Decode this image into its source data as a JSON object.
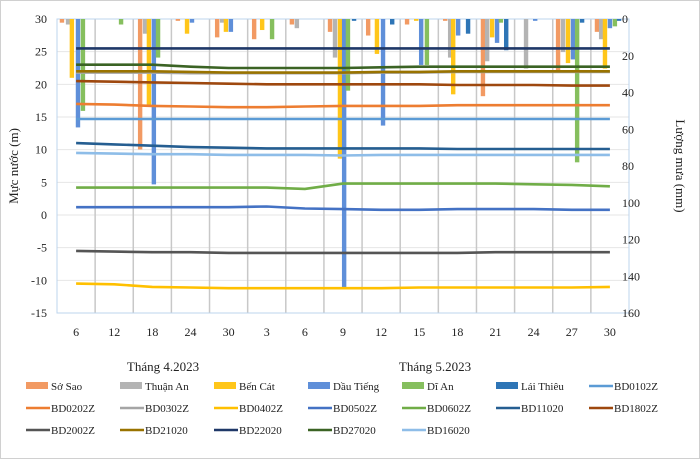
{
  "chart_data": {
    "type": "bar+line",
    "ylabel": "Mực nước (m)",
    "y2label": "Lượng mưa (mm)",
    "ylim": [
      -15,
      30
    ],
    "y_ticks": [
      "30",
      "25",
      "20",
      "15",
      "10",
      "5",
      "0",
      "-5",
      "-10",
      "-15"
    ],
    "y2lim": [
      0,
      160
    ],
    "y2_inverted": true,
    "y2_ticks": [
      "0",
      "20",
      "40",
      "60",
      "80",
      "100",
      "120",
      "140",
      "160"
    ],
    "categories": [
      "6",
      "12",
      "18",
      "24",
      "30",
      "3",
      "6",
      "9",
      "12",
      "15",
      "18",
      "21",
      "24",
      "27",
      "30"
    ],
    "month_labels": [
      "Tháng 4.2023",
      "Tháng 5.2023"
    ],
    "grid": true,
    "legend_placement": "bottom",
    "rain_stations": [
      {
        "name": "Sở Sao",
        "color": "#f29a63"
      },
      {
        "name": "Thuận An",
        "color": "#b4b4b4"
      },
      {
        "name": "Bến Cát",
        "color": "#ffc61a"
      },
      {
        "name": "Dầu Tiếng",
        "color": "#5f8fd9"
      },
      {
        "name": "Dĩ An",
        "color": "#86bf5e"
      },
      {
        "name": "Lái Thiêu",
        "color": "#2e75b6"
      }
    ],
    "rain_bars": [
      {
        "station": 0,
        "x": 0.13,
        "mm": 2
      },
      {
        "station": 1,
        "x": 0.29,
        "mm": 3
      },
      {
        "station": 2,
        "x": 0.39,
        "mm": 32
      },
      {
        "station": 3,
        "x": 0.55,
        "mm": 59
      },
      {
        "station": 4,
        "x": 0.68,
        "mm": 50
      },
      {
        "station": 4,
        "x": 1.68,
        "mm": 3
      },
      {
        "station": 0,
        "x": 2.18,
        "mm": 71
      },
      {
        "station": 1,
        "x": 2.31,
        "mm": 8
      },
      {
        "station": 2,
        "x": 2.41,
        "mm": 47
      },
      {
        "station": 3,
        "x": 2.54,
        "mm": 90
      },
      {
        "station": 4,
        "x": 2.65,
        "mm": 21
      },
      {
        "station": 0,
        "x": 3.17,
        "mm": 1
      },
      {
        "station": 2,
        "x": 3.41,
        "mm": 8
      },
      {
        "station": 3,
        "x": 3.54,
        "mm": 2
      },
      {
        "station": 0,
        "x": 4.2,
        "mm": 10
      },
      {
        "station": 1,
        "x": 4.33,
        "mm": 2
      },
      {
        "station": 2,
        "x": 4.43,
        "mm": 7
      },
      {
        "station": 3,
        "x": 4.56,
        "mm": 7
      },
      {
        "station": 0,
        "x": 5.17,
        "mm": 11
      },
      {
        "station": 2,
        "x": 5.38,
        "mm": 6
      },
      {
        "station": 4,
        "x": 5.64,
        "mm": 11
      },
      {
        "station": 0,
        "x": 6.16,
        "mm": 3
      },
      {
        "station": 1,
        "x": 6.29,
        "mm": 5
      },
      {
        "station": 0,
        "x": 7.16,
        "mm": 7
      },
      {
        "station": 1,
        "x": 7.29,
        "mm": 21
      },
      {
        "station": 2,
        "x": 7.42,
        "mm": 76
      },
      {
        "station": 3,
        "x": 7.53,
        "mm": 147
      },
      {
        "station": 4,
        "x": 7.63,
        "mm": 39
      },
      {
        "station": 5,
        "x": 7.79,
        "mm": 1
      },
      {
        "station": 0,
        "x": 8.16,
        "mm": 9
      },
      {
        "station": 2,
        "x": 8.39,
        "mm": 19
      },
      {
        "station": 3,
        "x": 8.55,
        "mm": 58
      },
      {
        "station": 5,
        "x": 8.79,
        "mm": 3
      },
      {
        "station": 0,
        "x": 9.18,
        "mm": 3
      },
      {
        "station": 2,
        "x": 9.42,
        "mm": 1
      },
      {
        "station": 3,
        "x": 9.55,
        "mm": 25
      },
      {
        "station": 4,
        "x": 9.7,
        "mm": 25
      },
      {
        "station": 0,
        "x": 10.18,
        "mm": 1
      },
      {
        "station": 1,
        "x": 10.31,
        "mm": 21
      },
      {
        "station": 2,
        "x": 10.39,
        "mm": 41
      },
      {
        "station": 3,
        "x": 10.52,
        "mm": 9
      },
      {
        "station": 5,
        "x": 10.78,
        "mm": 8
      },
      {
        "station": 0,
        "x": 11.17,
        "mm": 42
      },
      {
        "station": 1,
        "x": 11.28,
        "mm": 23
      },
      {
        "station": 2,
        "x": 11.41,
        "mm": 10
      },
      {
        "station": 3,
        "x": 11.54,
        "mm": 13
      },
      {
        "station": 4,
        "x": 11.64,
        "mm": 2
      },
      {
        "station": 5,
        "x": 11.78,
        "mm": 17
      },
      {
        "station": 1,
        "x": 12.3,
        "mm": 27
      },
      {
        "station": 3,
        "x": 12.54,
        "mm": 1
      },
      {
        "station": 0,
        "x": 13.14,
        "mm": 29
      },
      {
        "station": 1,
        "x": 13.27,
        "mm": 18
      },
      {
        "station": 2,
        "x": 13.4,
        "mm": 24
      },
      {
        "station": 3,
        "x": 13.53,
        "mm": 22
      },
      {
        "station": 4,
        "x": 13.64,
        "mm": 78
      },
      {
        "station": 5,
        "x": 13.77,
        "mm": 2
      },
      {
        "station": 0,
        "x": 14.16,
        "mm": 7
      },
      {
        "station": 1,
        "x": 14.27,
        "mm": 11
      },
      {
        "station": 2,
        "x": 14.37,
        "mm": 27
      },
      {
        "station": 3,
        "x": 14.5,
        "mm": 5
      },
      {
        "station": 4,
        "x": 14.63,
        "mm": 4
      },
      {
        "station": 5,
        "x": 14.74,
        "mm": 1
      }
    ],
    "wells": [
      {
        "name": "BD0102Z",
        "color": "#5b9bd5",
        "values": [
          14.7,
          14.7,
          14.7,
          14.7,
          14.7,
          14.7,
          14.7,
          14.7,
          14.7,
          14.7,
          14.7,
          14.7,
          14.7,
          14.7,
          14.7
        ]
      },
      {
        "name": "BD0202Z",
        "color": "#ed7d31",
        "values": [
          17,
          16.9,
          16.7,
          16.6,
          16.5,
          16.5,
          16.6,
          16.7,
          16.7,
          16.7,
          16.8,
          16.8,
          16.8,
          16.8,
          16.8
        ]
      },
      {
        "name": "BD0302Z",
        "color": "#a5a5a5",
        "values": [
          21.8,
          21.8,
          21.8,
          21.7,
          21.7,
          21.7,
          21.7,
          21.7,
          21.8,
          21.8,
          21.9,
          21.9,
          21.9,
          21.9,
          21.9
        ]
      },
      {
        "name": "BD0402Z",
        "color": "#ffc000",
        "values": [
          -10.5,
          -10.6,
          -11,
          -11.1,
          -11.2,
          -11.2,
          -11.2,
          -11.2,
          -11.2,
          -11.1,
          -11.1,
          -11.1,
          -11.1,
          -11.1,
          -11
        ]
      },
      {
        "name": "BD0502Z",
        "color": "#4472c4",
        "values": [
          1.2,
          1.2,
          1.2,
          1.2,
          1.2,
          1.3,
          1.0,
          0.9,
          0.8,
          0.8,
          0.9,
          0.9,
          0.9,
          0.8,
          0.8
        ]
      },
      {
        "name": "BD0602Z",
        "color": "#70ad47",
        "values": [
          4.2,
          4.2,
          4.2,
          4.2,
          4.2,
          4.2,
          4.0,
          4.8,
          4.8,
          4.8,
          4.8,
          4.8,
          4.7,
          4.6,
          4.4
        ]
      },
      {
        "name": "BD11020",
        "color": "#255e91",
        "values": [
          11,
          10.8,
          10.6,
          10.4,
          10.3,
          10.2,
          10.2,
          10.2,
          10.2,
          10.2,
          10.1,
          10.1,
          10.1,
          10.1,
          10.1
        ]
      },
      {
        "name": "BD1802Z",
        "color": "#9e480e",
        "values": [
          20.5,
          20.4,
          20.3,
          20.2,
          20.1,
          20,
          20,
          20,
          20,
          20,
          19.9,
          19.9,
          19.9,
          19.8,
          19.8
        ]
      },
      {
        "name": "BD2002Z",
        "color": "#555555",
        "values": [
          -5.5,
          -5.6,
          -5.7,
          -5.7,
          -5.8,
          -5.8,
          -5.8,
          -5.8,
          -5.8,
          -5.8,
          -5.8,
          -5.7,
          -5.7,
          -5.7,
          -5.7
        ]
      },
      {
        "name": "BD21020",
        "color": "#997300",
        "values": [
          22,
          22,
          22,
          21.9,
          21.8,
          21.8,
          21.8,
          21.8,
          21.9,
          21.9,
          22,
          22,
          22,
          22,
          22
        ]
      },
      {
        "name": "BD22020",
        "color": "#1f3868",
        "values": [
          25.5,
          25.5,
          25.5,
          25.5,
          25.5,
          25.5,
          25.5,
          25.5,
          25.5,
          25.5,
          25.5,
          25.5,
          25.5,
          25.5,
          25.5
        ]
      },
      {
        "name": "BD27020",
        "color": "#3b6324",
        "values": [
          23,
          23,
          23,
          22.7,
          22.5,
          22.5,
          22.5,
          22.5,
          22.6,
          22.7,
          22.7,
          22.7,
          22.7,
          22.7,
          22.7
        ]
      },
      {
        "name": "BD16020",
        "color": "#8ebde8",
        "values": [
          9.5,
          9.4,
          9.3,
          9.3,
          9.2,
          9.2,
          9.2,
          9.1,
          9.2,
          9.2,
          9.2,
          9.2,
          9.2,
          9.2,
          9.2
        ]
      }
    ]
  }
}
